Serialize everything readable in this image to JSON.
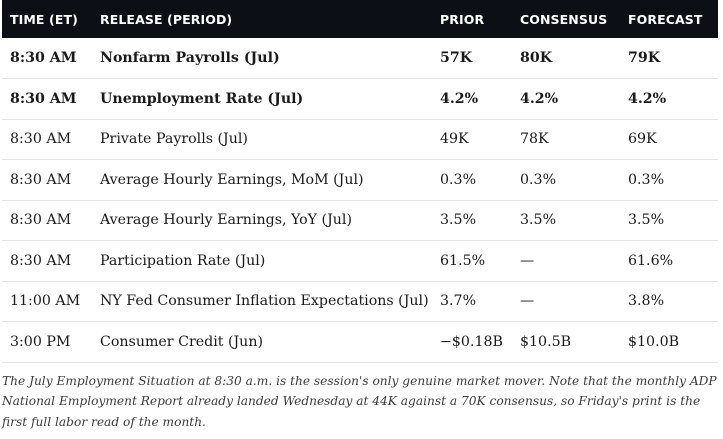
{
  "table": {
    "headers": {
      "time": "TIME (ET)",
      "release": "RELEASE (PERIOD)",
      "prior": "PRIOR",
      "consensus": "CONSENSUS",
      "forecast": "FORECAST"
    },
    "rows": [
      {
        "time": "8:30 AM",
        "release": "Nonfarm Payrolls (Jul)",
        "prior": "57K",
        "consensus": "80K",
        "forecast": "79K",
        "bold": true
      },
      {
        "time": "8:30 AM",
        "release": "Unemployment Rate (Jul)",
        "prior": "4.2%",
        "consensus": "4.2%",
        "forecast": "4.2%",
        "bold": true
      },
      {
        "time": "8:30 AM",
        "release": "Private Payrolls (Jul)",
        "prior": "49K",
        "consensus": "78K",
        "forecast": "69K",
        "bold": false
      },
      {
        "time": "8:30 AM",
        "release": "Average Hourly Earnings, MoM (Jul)",
        "prior": "0.3%",
        "consensus": "0.3%",
        "forecast": "0.3%",
        "bold": false
      },
      {
        "time": "8:30 AM",
        "release": "Average Hourly Earnings, YoY (Jul)",
        "prior": "3.5%",
        "consensus": "3.5%",
        "forecast": "3.5%",
        "bold": false
      },
      {
        "time": "8:30 AM",
        "release": "Participation Rate (Jul)",
        "prior": "61.5%",
        "consensus": "—",
        "forecast": "61.6%",
        "bold": false
      },
      {
        "time": "11:00 AM",
        "release": "NY Fed Consumer Inflation Expectations (Jul)",
        "prior": "3.7%",
        "consensus": "—",
        "forecast": "3.8%",
        "bold": false
      },
      {
        "time": "3:00 PM",
        "release": "Consumer Credit (Jun)",
        "prior": "−$0.18B",
        "consensus": "$10.5B",
        "forecast": "$10.0B",
        "bold": false
      }
    ]
  },
  "note": "The July Employment Situation at 8:30 a.m. is the session's only genuine market mover. Note that the monthly ADP National Employment Report already landed Wednesday at 44K against a 70K consensus, so Friday's print is the first full labor read of the month.",
  "colors": {
    "header_bg": "#0d0f17",
    "header_text": "#ffffff",
    "row_border": "#e4e4e4"
  }
}
